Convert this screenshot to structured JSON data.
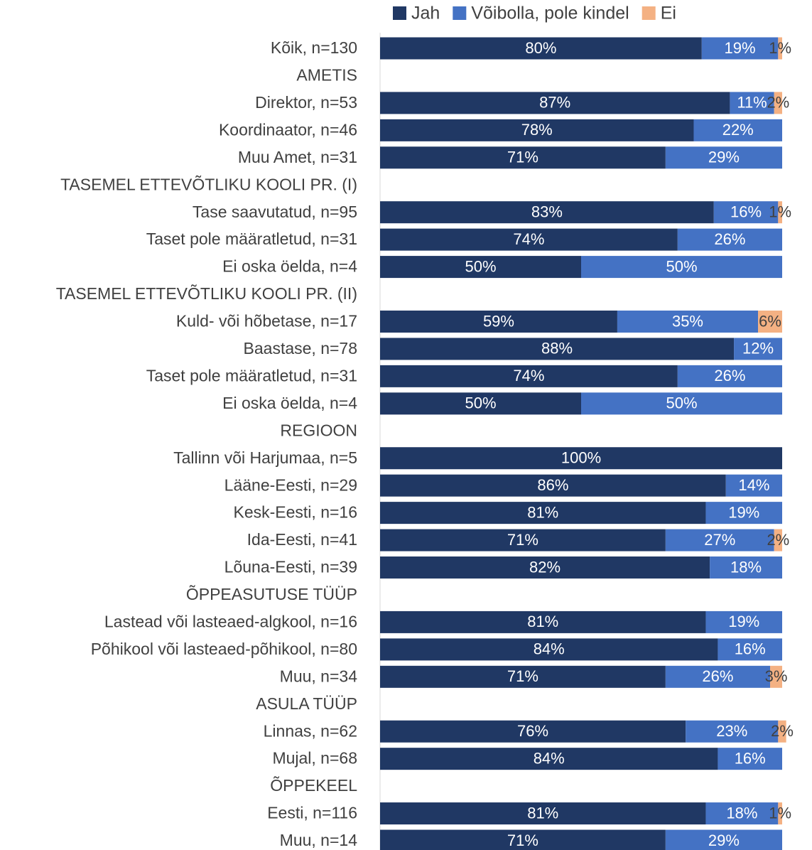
{
  "chart_data": {
    "type": "stacked-bar-horizontal",
    "categories": [
      "Kõik, n=130",
      "AMETIS",
      "Direktor, n=53",
      "Koordinaator, n=46",
      "Muu Amet, n=31",
      "TASEMEL ETTEVÕTLIKU KOOLI PR. (I)",
      "Tase saavutatud, n=95",
      "Taset pole määratletud, n=31",
      "Ei oska öelda, n=4",
      "TASEMEL ETTEVÕTLIKU KOOLI PR. (II)",
      "Kuld- või hõbetase, n=17",
      "Baastase, n=78",
      "Taset pole määratletud, n=31",
      "Ei oska öelda, n=4",
      "REGIOON",
      "Tallinn või Harjumaa, n=5",
      "Lääne-Eesti, n=29",
      "Kesk-Eesti, n=16",
      "Ida-Eesti, n=41",
      "Lõuna-Eesti, n=39",
      "ÕPPEASUTUSE TÜÜP",
      "Lastead või lasteaed-algkool, n=16",
      "Põhikool või lasteaed-põhikool, n=80",
      "Muu, n=34",
      "ASULA TÜÜP",
      "Linnas, n=62",
      "Mujal, n=68",
      "ÕPPEKEEL",
      "Eesti, n=116",
      "Muu, n=14"
    ],
    "series": [
      {
        "name": "Jah",
        "color": "#203864",
        "values": [
          80,
          null,
          87,
          78,
          71,
          null,
          83,
          74,
          50,
          null,
          59,
          88,
          74,
          50,
          null,
          100,
          86,
          81,
          71,
          82,
          null,
          81,
          84,
          71,
          null,
          76,
          84,
          null,
          81,
          71
        ],
        "value_labels": [
          "80%",
          null,
          "87%",
          "78%",
          "71%",
          null,
          "83%",
          "74%",
          "50%",
          null,
          "59%",
          "88%",
          "74%",
          "50%",
          null,
          "100%",
          "86%",
          "81%",
          "71%",
          "82%",
          null,
          "81%",
          "84%",
          "71%",
          null,
          "76%",
          "84%",
          null,
          "81%",
          "71%"
        ]
      },
      {
        "name": "Võibolla, pole kindel",
        "color": "#4472c4",
        "values": [
          19,
          null,
          11,
          22,
          29,
          null,
          16,
          26,
          50,
          null,
          35,
          12,
          26,
          50,
          null,
          null,
          14,
          19,
          27,
          18,
          null,
          19,
          16,
          26,
          null,
          23,
          16,
          null,
          18,
          29
        ],
        "value_labels": [
          "19%",
          null,
          "11%",
          "22%",
          "29%",
          null,
          "16%",
          "26%",
          "50%",
          null,
          "35%",
          "12%",
          "26%",
          "50%",
          null,
          null,
          "14%",
          "19%",
          "27%",
          "18%",
          null,
          "19%",
          "16%",
          "26%",
          null,
          "23%",
          "16%",
          null,
          "18%",
          "29%"
        ]
      },
      {
        "name": "Ei",
        "color": "#f4b183",
        "values": [
          1,
          null,
          2,
          null,
          null,
          null,
          1,
          null,
          null,
          null,
          6,
          null,
          null,
          null,
          null,
          null,
          null,
          null,
          2,
          null,
          null,
          null,
          null,
          3,
          null,
          2,
          null,
          null,
          1,
          null
        ],
        "value_labels": [
          "1%",
          null,
          "2%",
          null,
          null,
          null,
          "1%",
          null,
          null,
          null,
          "6%",
          null,
          null,
          null,
          null,
          null,
          null,
          null,
          "2%",
          null,
          null,
          null,
          null,
          "3%",
          null,
          "2%",
          null,
          null,
          "1%",
          null
        ]
      }
    ],
    "xlim": [
      0,
      100
    ]
  }
}
